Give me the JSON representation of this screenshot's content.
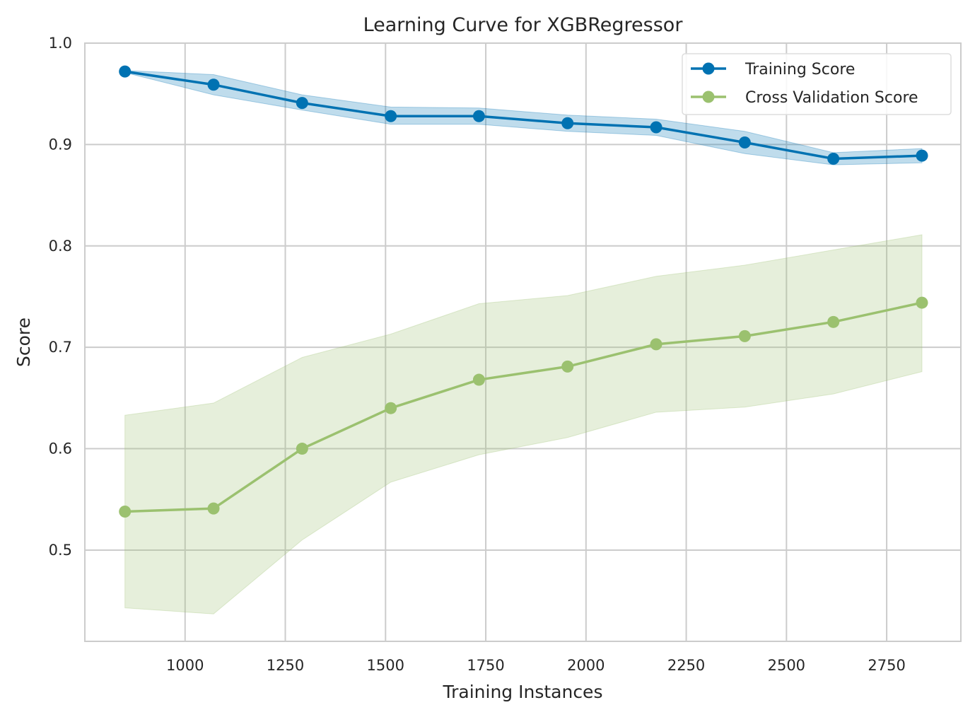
{
  "chart_data": {
    "type": "line",
    "title": "Learning Curve for XGBRegressor",
    "xlabel": "Training Instances",
    "ylabel": "Score",
    "xlim": [
      750,
      2935
    ],
    "ylim": [
      0.41,
      1.0
    ],
    "xticks": [
      1000,
      1250,
      1500,
      1750,
      2000,
      2250,
      2500,
      2750
    ],
    "yticks": [
      0.5,
      0.6,
      0.7,
      0.8,
      0.9,
      1.0
    ],
    "ytick_labels": [
      "0.5",
      "0.6",
      "0.7",
      "0.8",
      "0.9",
      "1.0"
    ],
    "grid": true,
    "legend_position": "top-right",
    "x": [
      850,
      1071,
      1292,
      1513,
      1733,
      1954,
      2175,
      2396,
      2617,
      2838
    ],
    "series": [
      {
        "name": "Training Score",
        "color": "#0072B2",
        "values": [
          0.972,
          0.959,
          0.941,
          0.928,
          0.928,
          0.921,
          0.917,
          0.902,
          0.886,
          0.889
        ],
        "upper": [
          0.973,
          0.969,
          0.949,
          0.937,
          0.936,
          0.929,
          0.925,
          0.913,
          0.892,
          0.896
        ],
        "lower": [
          0.971,
          0.949,
          0.934,
          0.92,
          0.92,
          0.913,
          0.909,
          0.891,
          0.88,
          0.882
        ]
      },
      {
        "name": "Cross Validation Score",
        "color": "#9BC16F",
        "values": [
          0.538,
          0.541,
          0.6,
          0.64,
          0.668,
          0.681,
          0.703,
          0.711,
          0.725,
          0.744
        ],
        "upper": [
          0.633,
          0.645,
          0.69,
          0.713,
          0.743,
          0.751,
          0.77,
          0.781,
          0.796,
          0.811
        ],
        "lower": [
          0.443,
          0.437,
          0.51,
          0.567,
          0.594,
          0.611,
          0.636,
          0.641,
          0.654,
          0.676
        ]
      }
    ]
  }
}
